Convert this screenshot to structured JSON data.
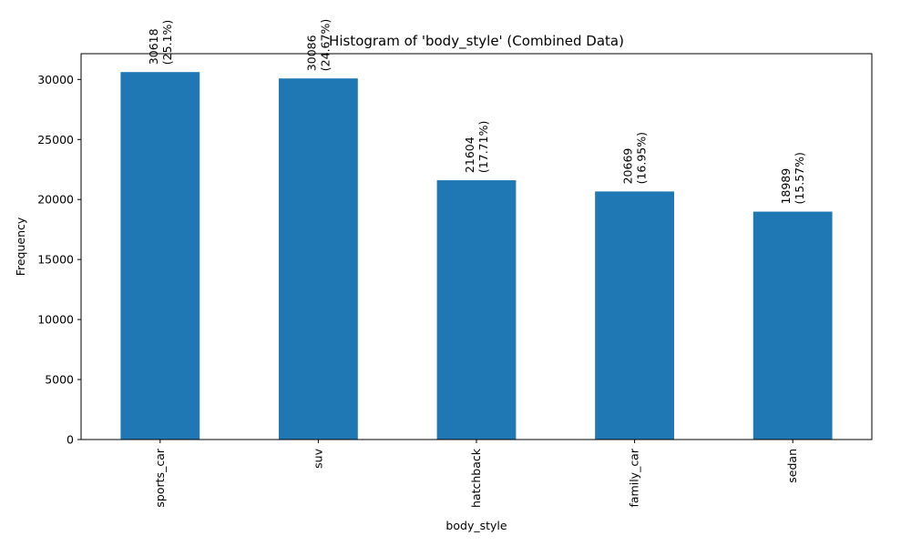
{
  "chart_data": {
    "type": "bar",
    "title": "Histogram of 'body_style' (Combined Data)",
    "xlabel": "body_style",
    "ylabel": "Frequency",
    "categories": [
      "sports_car",
      "suv",
      "hatchback",
      "family_car",
      "sedan"
    ],
    "values": [
      30618,
      30086,
      21604,
      20669,
      18989
    ],
    "data_labels": [
      [
        "30618",
        "(25.1%)"
      ],
      [
        "30086",
        "(24.67%)"
      ],
      [
        "21604",
        "(17.71%)"
      ],
      [
        "20669",
        "(16.95%)"
      ],
      [
        "18989",
        "(15.57%)"
      ]
    ],
    "yticks": [
      0,
      5000,
      10000,
      15000,
      20000,
      25000,
      30000
    ],
    "ylim": [
      0,
      32148.9
    ],
    "grid": false,
    "legend": "none",
    "bar_color": "#1f77b4"
  }
}
